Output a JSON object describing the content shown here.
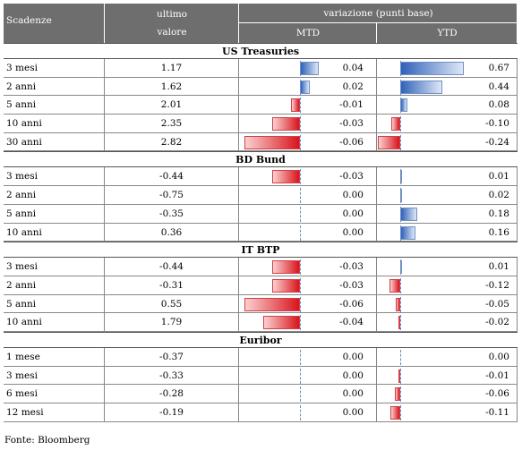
{
  "header": {
    "col_scadenze": "Scadenze",
    "col_ultimo_1": "ultimo",
    "col_ultimo_2": "valore",
    "col_variazione": "variazione (punti base)",
    "col_mtd": "MTD",
    "col_ytd": "YTD"
  },
  "colors": {
    "header_bg": "#6e6e6e",
    "positive_bar": "#2f62b8",
    "negative_bar": "#d8141c"
  },
  "sections": [
    {
      "title": "US Treasuries",
      "rows": [
        {
          "label": "3 mesi",
          "value": "1.17",
          "mtd": "0.04",
          "ytd": "0.67"
        },
        {
          "label": "2 anni",
          "value": "1.62",
          "mtd": "0.02",
          "ytd": "0.44"
        },
        {
          "label": "5 anni",
          "value": "2.01",
          "mtd": "-0.01",
          "ytd": "0.08"
        },
        {
          "label": "10 anni",
          "value": "2.35",
          "mtd": "-0.03",
          "ytd": "-0.10"
        },
        {
          "label": "30 anni",
          "value": "2.82",
          "mtd": "-0.06",
          "ytd": "-0.24"
        }
      ]
    },
    {
      "title": "BD Bund",
      "rows": [
        {
          "label": "3 mesi",
          "value": "-0.44",
          "mtd": "-0.03",
          "ytd": "0.01"
        },
        {
          "label": "2 anni",
          "value": "-0.75",
          "mtd": "0.00",
          "ytd": "0.02"
        },
        {
          "label": "5 anni",
          "value": "-0.35",
          "mtd": "0.00",
          "ytd": "0.18"
        },
        {
          "label": "10 anni",
          "value": "0.36",
          "mtd": "0.00",
          "ytd": "0.16"
        }
      ]
    },
    {
      "title": "IT BTP",
      "rows": [
        {
          "label": "3 mesi",
          "value": "-0.44",
          "mtd": "-0.03",
          "ytd": "0.01"
        },
        {
          "label": "2 anni",
          "value": "-0.31",
          "mtd": "-0.03",
          "ytd": "-0.12"
        },
        {
          "label": "5 anni",
          "value": "0.55",
          "mtd": "-0.06",
          "ytd": "-0.05"
        },
        {
          "label": "10 anni",
          "value": "1.79",
          "mtd": "-0.04",
          "ytd": "-0.02"
        }
      ]
    },
    {
      "title": "Euribor",
      "rows": [
        {
          "label": "1 mese",
          "value": "-0.37",
          "mtd": "0.00",
          "ytd": "0.00"
        },
        {
          "label": "3 mesi",
          "value": "-0.33",
          "mtd": "0.00",
          "ytd": "-0.01"
        },
        {
          "label": "6 mesi",
          "value": "-0.28",
          "mtd": "0.00",
          "ytd": "-0.06"
        },
        {
          "label": "12 mesi",
          "value": "-0.19",
          "mtd": "0.00",
          "ytd": "-0.11"
        }
      ]
    }
  ],
  "source": "Fonte: Bloomberg"
}
